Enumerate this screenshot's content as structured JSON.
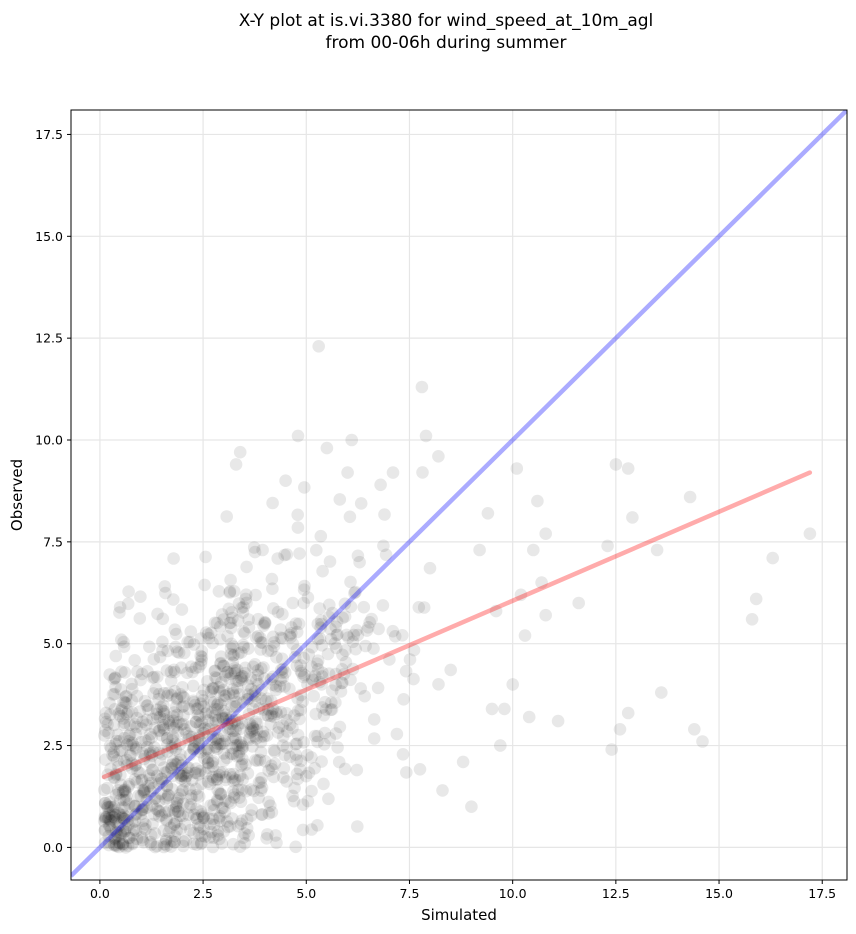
{
  "chart_data": {
    "type": "scatter",
    "title_lines": [
      "X-Y plot at is.vi.3380 for wind_speed_at_10m_agl",
      "from 00-06h during summer"
    ],
    "xlabel": "Simulated",
    "ylabel": "Observed",
    "xlim": [
      -0.7,
      18.1
    ],
    "ylim": [
      -0.8,
      18.1
    ],
    "xticks": [
      0.0,
      2.5,
      5.0,
      7.5,
      10.0,
      12.5,
      15.0,
      17.5
    ],
    "yticks": [
      0.0,
      2.5,
      5.0,
      7.5,
      10.0,
      12.5,
      15.0,
      17.5
    ],
    "xtick_labels": [
      "0.0",
      "2.5",
      "5.0",
      "7.5",
      "10.0",
      "12.5",
      "15.0",
      "17.5"
    ],
    "ytick_labels": [
      "0.0",
      "2.5",
      "5.0",
      "7.5",
      "10.0",
      "12.5",
      "15.0",
      "17.5"
    ],
    "grid": true,
    "point_color": "#000000",
    "point_opacity": 0.09,
    "identity_line": {
      "color": "#0000ff",
      "opacity": 0.33,
      "from": [
        -0.7,
        -0.7
      ],
      "to": [
        18.1,
        18.1
      ]
    },
    "regression_line": {
      "color": "#ff0000",
      "opacity": 0.33,
      "from": [
        0.1,
        1.73
      ],
      "to": [
        17.2,
        9.2
      ]
    },
    "cloud": {
      "count": 1150,
      "x_mean": 3.0,
      "x_std": 2.1,
      "x_min": 0.1,
      "x_max": 10.5,
      "y_intercept": 1.3,
      "y_slope": 0.55,
      "y_noise": 1.65,
      "y_min": 0.0,
      "y_max": 10.0
    },
    "outliers": [
      [
        5.3,
        12.3
      ],
      [
        7.8,
        11.3
      ],
      [
        5.5,
        9.8
      ],
      [
        6.1,
        10.0
      ],
      [
        4.8,
        10.1
      ],
      [
        3.4,
        9.7
      ],
      [
        8.2,
        9.6
      ],
      [
        7.9,
        10.1
      ],
      [
        10.1,
        9.3
      ],
      [
        10.6,
        8.5
      ],
      [
        10.8,
        7.7
      ],
      [
        10.5,
        7.3
      ],
      [
        10.7,
        6.5
      ],
      [
        10.8,
        5.7
      ],
      [
        10.3,
        5.2
      ],
      [
        11.1,
        3.1
      ],
      [
        11.6,
        6.0
      ],
      [
        12.3,
        7.4
      ],
      [
        12.5,
        9.4
      ],
      [
        12.8,
        9.3
      ],
      [
        12.9,
        8.1
      ],
      [
        13.5,
        7.3
      ],
      [
        13.6,
        3.8
      ],
      [
        12.6,
        2.9
      ],
      [
        12.8,
        3.3
      ],
      [
        12.4,
        2.4
      ],
      [
        14.3,
        8.6
      ],
      [
        14.4,
        2.9
      ],
      [
        14.6,
        2.6
      ],
      [
        15.8,
        5.6
      ],
      [
        15.9,
        6.1
      ],
      [
        16.3,
        7.1
      ],
      [
        17.2,
        7.7
      ],
      [
        9.4,
        8.2
      ],
      [
        9.2,
        7.3
      ],
      [
        9.6,
        5.8
      ],
      [
        9.8,
        3.4
      ],
      [
        10.0,
        4.0
      ],
      [
        9.5,
        3.4
      ],
      [
        10.4,
        3.2
      ],
      [
        9.0,
        1.0
      ],
      [
        8.8,
        2.1
      ],
      [
        9.7,
        2.5
      ],
      [
        8.3,
        1.4
      ],
      [
        10.2,
        6.2
      ],
      [
        6.8,
        8.9
      ],
      [
        7.1,
        9.2
      ],
      [
        6.0,
        9.2
      ],
      [
        4.5,
        9.0
      ],
      [
        3.3,
        9.4
      ]
    ]
  }
}
